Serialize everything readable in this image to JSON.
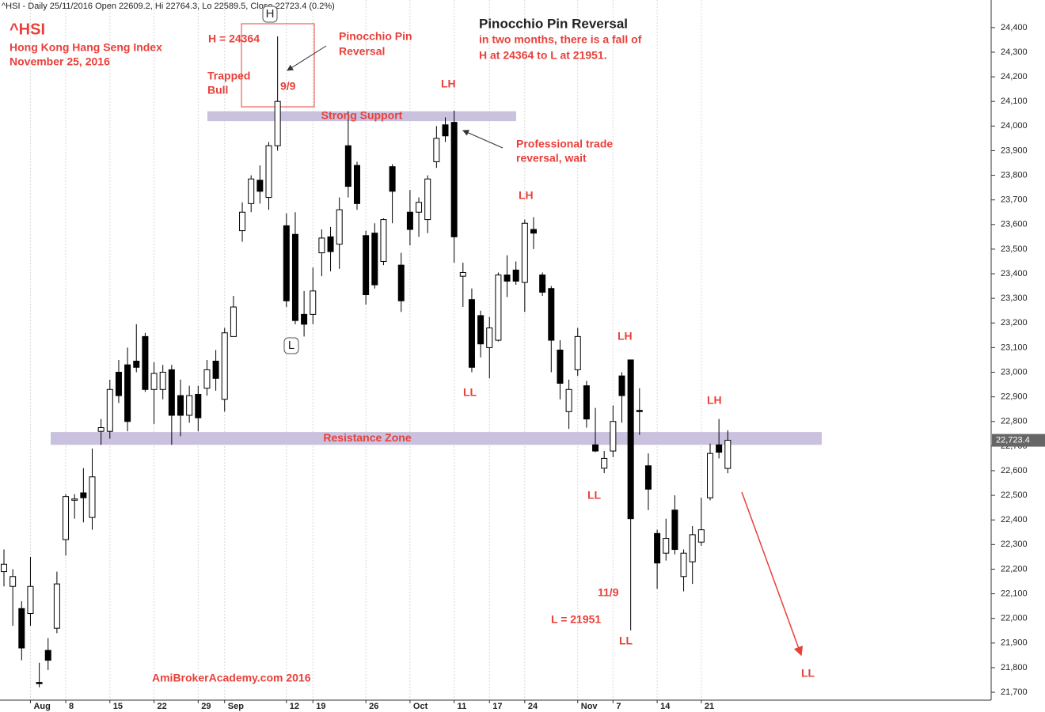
{
  "chart_data": {
    "type": "candlestick",
    "header": "^HSI - Daily 25/11/2016 Open 22609.2, Hi 22764.3, Lo 22589.5, Close 22723.4 (0.2%)",
    "categories": [
      null,
      null,
      null,
      "Aug",
      null,
      null,
      null,
      "8",
      null,
      null,
      null,
      null,
      "15",
      null,
      null,
      null,
      null,
      "22",
      null,
      null,
      null,
      null,
      "29",
      null,
      null,
      "Sep",
      null,
      null,
      null,
      null,
      null,
      null,
      "12",
      null,
      null,
      "19",
      null,
      null,
      null,
      null,
      null,
      "26",
      null,
      null,
      null,
      null,
      "Oct",
      null,
      null,
      null,
      null,
      "11",
      null,
      null,
      null,
      "17",
      null,
      null,
      null,
      "24",
      null,
      null,
      null,
      null,
      null,
      "Nov",
      null,
      null,
      null,
      "7",
      null,
      null,
      null,
      null,
      "14",
      null,
      null,
      null,
      null,
      "21",
      null,
      null,
      null
    ],
    "open": [
      22190,
      22130,
      22040,
      22020,
      21740,
      21870,
      21960,
      22320,
      22480,
      22510,
      22410,
      22760,
      22760,
      23000,
      23030,
      23045,
      23145,
      22930,
      22930,
      23010,
      22905,
      22825,
      22910,
      22935,
      23045,
      22890,
      23145,
      23575,
      23685,
      23780,
      23710,
      23920,
      23595,
      23560,
      23235,
      23235,
      23485,
      23550,
      23520,
      23920,
      23840,
      23555,
      23565,
      23450,
      23835,
      23435,
      23650,
      23650,
      23620,
      23855,
      24005,
      24015,
      23390,
      23295,
      23230,
      23100,
      23130,
      23395,
      23415,
      23365,
      23580,
      23395,
      23340,
      23090,
      22840,
      23010,
      22945,
      22705,
      22610,
      22680,
      22985,
      23050,
      22845,
      22620,
      22345,
      22265,
      22440,
      22170,
      22230,
      22310,
      22490,
      22705,
      22609.2
    ],
    "high": [
      22280,
      22200,
      22070,
      22250,
      21820,
      21920,
      22190,
      22505,
      22505,
      22610,
      22690,
      22810,
      22970,
      23050,
      23100,
      23195,
      23160,
      23040,
      23030,
      23030,
      22970,
      22945,
      22945,
      23050,
      23090,
      23180,
      23310,
      23690,
      23800,
      23840,
      23935,
      24364,
      23645,
      23650,
      23330,
      23425,
      23580,
      23590,
      23710,
      24060,
      23855,
      23575,
      23605,
      23625,
      23845,
      23485,
      23740,
      23710,
      23800,
      24000,
      24035,
      24063,
      23445,
      23340,
      23250,
      23225,
      23405,
      23475,
      23450,
      23620,
      23630,
      23405,
      23350,
      23130,
      22970,
      23180,
      22965,
      22855,
      22680,
      22865,
      23000,
      23050,
      22935,
      22670,
      22360,
      22405,
      22500,
      22280,
      22375,
      22490,
      22710,
      22810,
      22764.3
    ],
    "low": [
      22130,
      21970,
      21830,
      21970,
      21720,
      21790,
      21940,
      22255,
      22405,
      22390,
      22360,
      22705,
      22730,
      22875,
      22760,
      23000,
      22920,
      22790,
      22890,
      22705,
      22740,
      22795,
      22760,
      22905,
      22925,
      22840,
      23145,
      23530,
      23650,
      23685,
      23660,
      23900,
      23265,
      23195,
      23145,
      23195,
      23390,
      23410,
      23420,
      23710,
      23660,
      23275,
      23340,
      23435,
      23605,
      23245,
      23515,
      23550,
      23565,
      23830,
      23935,
      23445,
      23265,
      23000,
      23060,
      22975,
      23125,
      23305,
      23355,
      23245,
      23500,
      23310,
      23000,
      22890,
      22770,
      22985,
      22775,
      22675,
      22590,
      22655,
      22795,
      21951,
      22745,
      22440,
      22120,
      22235,
      22260,
      22110,
      22140,
      22295,
      22480,
      22650,
      22589.5
    ],
    "close": [
      22220,
      22170,
      21880,
      22130,
      21735,
      21830,
      22140,
      22495,
      22485,
      22490,
      22575,
      22775,
      22930,
      22905,
      22800,
      23020,
      22930,
      22995,
      23000,
      22825,
      22825,
      22905,
      22815,
      23010,
      22975,
      23160,
      23265,
      23650,
      23785,
      23735,
      23920,
      24100,
      23290,
      23210,
      23195,
      23330,
      23545,
      23490,
      23660,
      23755,
      23685,
      23315,
      23355,
      23620,
      23735,
      23290,
      23580,
      23690,
      23785,
      23950,
      23960,
      23550,
      23405,
      23020,
      23115,
      23180,
      23395,
      23370,
      23370,
      23605,
      23565,
      23325,
      23130,
      22955,
      22930,
      23145,
      22810,
      22680,
      22650,
      22800,
      22905,
      22405,
      22840,
      22525,
      22225,
      22325,
      22280,
      22265,
      22340,
      22360,
      22670,
      22675,
      22723.4
    ],
    "up_color": "#ffffff",
    "down_color": "#000000",
    "ylim": [
      21668,
      24512
    ],
    "yticks": [
      {
        "value": 21700,
        "label": "21,700"
      },
      {
        "value": 21800,
        "label": "21,800"
      },
      {
        "value": 21900,
        "label": "21,900"
      },
      {
        "value": 22000,
        "label": "22,000"
      },
      {
        "value": 22100,
        "label": "22,100"
      },
      {
        "value": 22200,
        "label": "22,200"
      },
      {
        "value": 22300,
        "label": "22,300"
      },
      {
        "value": 22400,
        "label": "22,400"
      },
      {
        "value": 22500,
        "label": "22,500"
      },
      {
        "value": 22600,
        "label": "22,600"
      },
      {
        "value": 22700,
        "label": "22,700"
      },
      {
        "value": 22800,
        "label": "22,800"
      },
      {
        "value": 22900,
        "label": "22,900"
      },
      {
        "value": 23000,
        "label": "23,000"
      },
      {
        "value": 23100,
        "label": "23,100"
      },
      {
        "value": 23200,
        "label": "23,200"
      },
      {
        "value": 23300,
        "label": "23,300"
      },
      {
        "value": 23400,
        "label": "23,400"
      },
      {
        "value": 23500,
        "label": "23,500"
      },
      {
        "value": 23600,
        "label": "23,600"
      },
      {
        "value": 23700,
        "label": "23,700"
      },
      {
        "value": 23800,
        "label": "23,800"
      },
      {
        "value": 23900,
        "label": "23,900"
      },
      {
        "value": 24000,
        "label": "24,000"
      },
      {
        "value": 24100,
        "label": "24,100"
      },
      {
        "value": 24200,
        "label": "24,200"
      },
      {
        "value": 24300,
        "label": "24,300"
      },
      {
        "value": 24400,
        "label": "24,400"
      }
    ],
    "grid": "x",
    "price_tag": "22,723.4",
    "zones": [
      {
        "label": "Strong Support",
        "low": 24020,
        "high": 24060,
        "color": "#c9c1dd"
      },
      {
        "label": "Resistance Zone",
        "low": 22705,
        "high": 22757,
        "color": "#c9c1dd"
      }
    ],
    "pivot_labels": [
      "H",
      "L"
    ],
    "annotations": [
      "^HSI",
      "Hong Kong Hang Seng Index",
      "November 25, 2016",
      "H = 24364",
      "Trapped",
      "Bull",
      "9/9",
      "Pinocchio Pin",
      "Reversal",
      "Pinocchio Pin Reversal",
      "in two months, there is a fall of",
      "H at 24364 to L at 21951.",
      "LH",
      "Professional trade",
      "reversal, wait",
      "LH",
      "LL",
      "LH",
      "LL",
      "LH",
      "11/9",
      "L = 21951",
      "LL",
      "LL",
      "AmiBrokerAcademy.com  2016"
    ]
  }
}
